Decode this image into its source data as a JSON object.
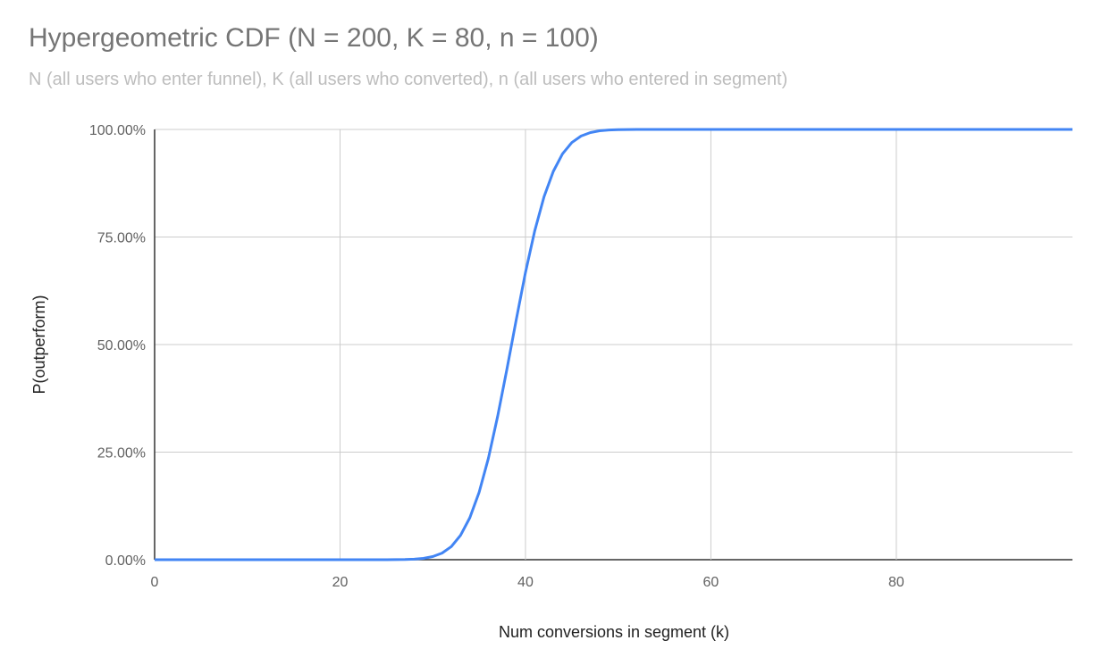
{
  "chart_data": {
    "type": "line",
    "title": "Hypergeometric CDF (N = 200, K = 80, n = 100)",
    "subtitle": "N (all users who enter funnel), K (all users who converted), n (all users who entered in segment)",
    "xlabel": "Num conversions in segment (k)",
    "ylabel": "P(outperform)",
    "xlim": [
      0,
      99
    ],
    "ylim": [
      0,
      1
    ],
    "x_ticks": [
      0,
      20,
      40,
      60,
      80
    ],
    "x_tick_labels": [
      "0",
      "20",
      "40",
      "60",
      "80"
    ],
    "y_ticks": [
      0,
      0.25,
      0.5,
      0.75,
      1
    ],
    "y_tick_labels": [
      "0.00%",
      "25.00%",
      "50.00%",
      "75.00%",
      "100.00%"
    ],
    "grid": true,
    "legend": "none",
    "series_color": "#4285f4",
    "x_start": 0,
    "values": [
      0,
      0,
      0,
      0,
      0,
      0,
      0,
      0,
      0,
      0,
      0,
      0,
      0,
      0,
      0,
      0,
      0,
      0,
      0,
      0,
      0,
      0,
      0,
      0,
      0,
      0,
      0.0002,
      0.0005,
      0.0013,
      0.0031,
      0.0072,
      0.0154,
      0.0306,
      0.0566,
      0.0975,
      0.1567,
      0.2358,
      0.3329,
      0.4428,
      0.5572,
      0.6671,
      0.7642,
      0.8433,
      0.9025,
      0.9434,
      0.9694,
      0.9846,
      0.9928,
      0.9969,
      0.9987,
      0.9995,
      0.9998,
      1,
      1,
      1,
      1,
      1,
      1,
      1,
      1,
      1,
      1,
      1,
      1,
      1,
      1,
      1,
      1,
      1,
      1,
      1,
      1,
      1,
      1,
      1,
      1,
      1,
      1,
      1,
      1,
      1,
      1,
      1,
      1,
      1,
      1,
      1,
      1,
      1,
      1,
      1,
      1,
      1,
      1,
      1,
      1,
      1,
      1,
      1,
      1
    ]
  }
}
